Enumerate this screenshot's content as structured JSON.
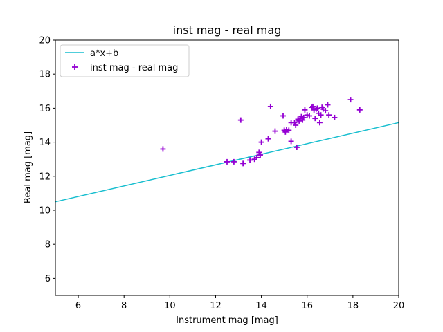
{
  "chart_data": {
    "type": "scatter",
    "title": "inst mag - real mag",
    "xlabel": "Instrument mag [mag]",
    "ylabel": "Real mag [mag]",
    "xlim": [
      5,
      20
    ],
    "ylim": [
      5,
      20
    ],
    "xticks": [
      6,
      8,
      10,
      12,
      14,
      16,
      18,
      20
    ],
    "yticks": [
      6,
      8,
      10,
      12,
      14,
      16,
      18,
      20
    ],
    "grid": false,
    "legend_position": "top-left",
    "series": [
      {
        "name": "a*x+b",
        "type": "line",
        "color": "#17becf",
        "x": [
          5,
          20
        ],
        "y": [
          10.5,
          15.15
        ]
      },
      {
        "name": "inst mag - real mag",
        "type": "scatter",
        "marker": "+",
        "color": "#9400d3",
        "x": [
          9.7,
          12.5,
          12.8,
          13.1,
          13.2,
          13.5,
          13.7,
          13.8,
          13.9,
          13.95,
          14.0,
          14.3,
          14.4,
          14.6,
          14.95,
          15.0,
          15.05,
          15.1,
          15.2,
          15.3,
          15.3,
          15.45,
          15.5,
          15.55,
          15.6,
          15.65,
          15.7,
          15.75,
          15.8,
          15.85,
          15.9,
          16.0,
          16.1,
          16.2,
          16.25,
          16.3,
          16.35,
          16.4,
          16.45,
          16.5,
          16.55,
          16.6,
          16.65,
          16.7,
          16.8,
          16.9,
          16.95,
          17.2,
          17.9,
          18.3
        ],
        "y": [
          13.6,
          12.85,
          12.85,
          15.3,
          12.75,
          12.95,
          13.0,
          13.1,
          13.4,
          13.25,
          14.0,
          14.2,
          16.1,
          14.65,
          15.55,
          14.7,
          14.6,
          14.75,
          14.7,
          15.15,
          14.05,
          15.15,
          15.0,
          13.7,
          15.35,
          15.25,
          15.4,
          15.5,
          15.3,
          15.45,
          15.9,
          15.6,
          15.55,
          16.05,
          16.1,
          15.9,
          15.4,
          15.95,
          16.0,
          15.7,
          15.15,
          15.6,
          16.05,
          15.95,
          15.85,
          16.2,
          15.6,
          15.45,
          16.5,
          15.9
        ]
      }
    ]
  }
}
